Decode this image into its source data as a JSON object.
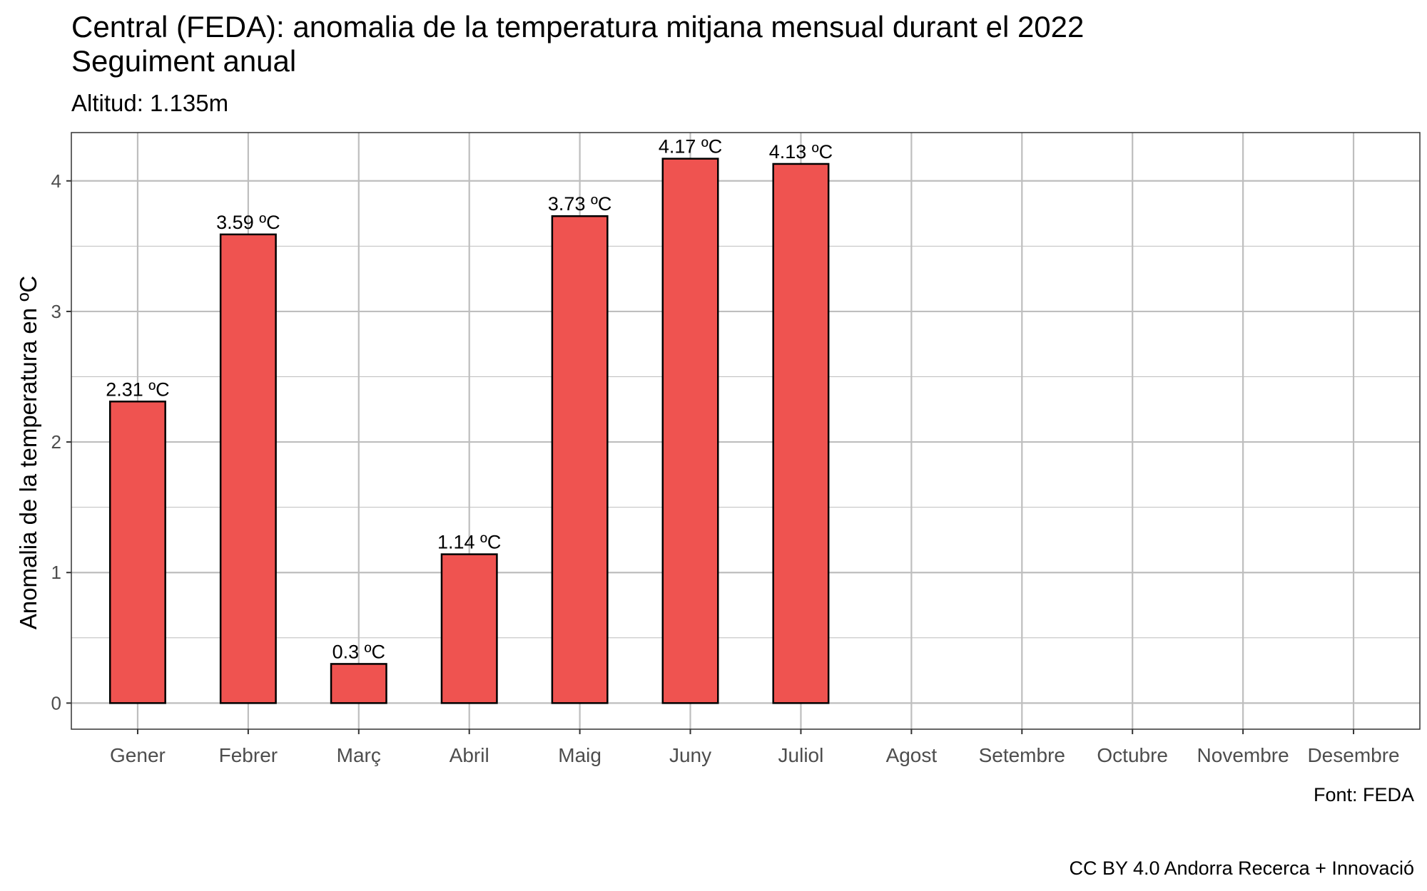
{
  "chart_data": {
    "type": "bar",
    "title_lines": [
      "Central (FEDA): anomalia de la temperatura mitjana mensual durant el 2022",
      "Seguiment anual"
    ],
    "subtitle": "Altitud: 1.135m",
    "xlabel": "",
    "ylabel": "Anomalia de la temperatura en ºC",
    "categories": [
      "Gener",
      "Febrer",
      "Març",
      "Abril",
      "Maig",
      "Juny",
      "Juliol",
      "Agost",
      "Setembre",
      "Octubre",
      "Novembre",
      "Desembre"
    ],
    "values": [
      2.31,
      3.59,
      0.3,
      1.14,
      3.73,
      4.17,
      4.13,
      null,
      null,
      null,
      null,
      null
    ],
    "data_labels": [
      "2.31 ºC",
      "3.59 ºC",
      "0.3 ºC",
      "1.14 ºC",
      "3.73 ºC",
      "4.17 ºC",
      "4.13 ºC",
      "",
      "",
      "",
      "",
      ""
    ],
    "yticks": [
      0,
      1,
      2,
      3,
      4
    ],
    "ylim": [
      -0.2,
      4.37
    ],
    "grid": true,
    "legend": "none",
    "bar_color": "#EF5350",
    "bar_edge_color": "#000000",
    "grid_color": "#BEBEBE",
    "captions": [
      "Font: FEDA",
      "CC BY 4.0 Andorra Recerca + Innovació"
    ]
  }
}
